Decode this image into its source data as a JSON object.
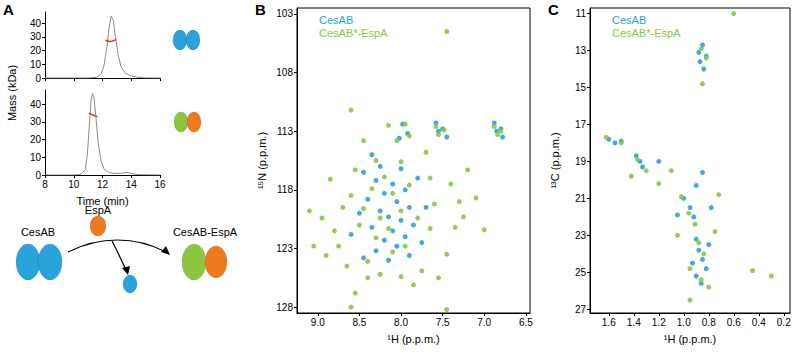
{
  "chart_data": [
    {
      "type": "line",
      "title": "A",
      "ylabel": "Mass (kDa)",
      "tick_labels": "y",
      "grid": false,
      "xlim": [
        8,
        16
      ],
      "xticks": [
        8,
        10,
        12,
        14,
        16
      ],
      "ylim": [
        0,
        48
      ],
      "yticks": [
        0,
        10,
        20,
        30,
        40
      ],
      "series": [
        {
          "color": "#8a8a8a",
          "line_style": "solid",
          "x": [
            8,
            9,
            10,
            11,
            11.6,
            11.9,
            12.1,
            12.3,
            12.45,
            12.6,
            12.75,
            12.9,
            13.1,
            13.3,
            13.6,
            14,
            14.5,
            15,
            16
          ],
          "values": [
            0,
            0,
            0,
            0,
            0.5,
            3,
            9,
            22,
            36,
            45,
            42,
            30,
            16,
            8,
            3.5,
            1.5,
            0.5,
            0,
            0
          ]
        },
        {
          "color": "#e8372c",
          "line_style": "solid",
          "x": [
            12.2,
            12.35,
            12.5,
            12.65,
            12.8,
            12.95
          ],
          "values": [
            27.5,
            27,
            26.5,
            26.7,
            27.3,
            28
          ]
        }
      ]
    },
    {
      "type": "line",
      "xlabel": "Time (min)",
      "grid": false,
      "xlim": [
        8,
        16
      ],
      "xticks": [
        8,
        10,
        12,
        14,
        16
      ],
      "ylim": [
        0,
        48
      ],
      "yticks": [
        0,
        10,
        20,
        30,
        40
      ],
      "series": [
        {
          "color": "#8a8a8a",
          "line_style": "solid",
          "x": [
            8,
            9,
            10,
            10.5,
            10.8,
            10.95,
            11.1,
            11.2,
            11.3,
            11.4,
            11.55,
            11.7,
            11.9,
            12.1,
            12.4,
            12.8,
            13.3,
            13.7,
            14,
            14.5,
            16
          ],
          "values": [
            0,
            0,
            0,
            0.3,
            3,
            12,
            30,
            42,
            46,
            44,
            32,
            18,
            8,
            3.5,
            1.5,
            0.8,
            1,
            1.5,
            0.8,
            0.2,
            0
          ]
        },
        {
          "color": "#e8372c",
          "line_style": "solid",
          "x": [
            11.05,
            11.15,
            11.25,
            11.35,
            11.45,
            11.55,
            11.65
          ],
          "values": [
            35,
            34.5,
            34,
            33.8,
            33.5,
            33.2,
            33
          ]
        }
      ]
    },
    {
      "type": "scatter",
      "title": "B",
      "xlabel": "¹H (p.p.m.)",
      "ylabel": "¹⁵N (p.p.m.)",
      "legend": "upper left",
      "grid": false,
      "xlim": [
        9.25,
        6.45
      ],
      "xticks": [
        {
          "value": 9,
          "label": "9.0"
        },
        8.5,
        {
          "value": 8,
          "label": "8.0"
        },
        7.5,
        {
          "value": 7,
          "label": "7.0"
        },
        6.5
      ],
      "ylim": [
        128.5,
        102.5
      ],
      "yticks": [
        103,
        108,
        113,
        118,
        123,
        128
      ],
      "series": [
        {
          "name": "CesAB",
          "color": "#29a3dc",
          "marker": "circle",
          "x": [
            7.58,
            6.88,
            7.55,
            6.85,
            7.5,
            6.8,
            7.45,
            6.78,
            7.98,
            7.92,
            8.02,
            8.45,
            8.3,
            8.1,
            7.95,
            8.2,
            8.4,
            8.05,
            7.9,
            8.25,
            8.15,
            8.0,
            7.85,
            8.35,
            8.1,
            7.95,
            8.2,
            8.05,
            8.3,
            7.8,
            8.5,
            8.6,
            8.0,
            8.35,
            7.7,
            7.75,
            8.15,
            8.45,
            7.9,
            8.25
          ],
          "values": [
            112.3,
            112.3,
            113.0,
            113.0,
            112.8,
            112.8,
            113.5,
            113.5,
            112.4,
            113.2,
            113.6,
            116.5,
            117.2,
            117.5,
            118,
            118.3,
            118.8,
            119.0,
            119.5,
            119.8,
            120.3,
            120.6,
            121,
            121.2,
            121.5,
            122,
            122.3,
            122.8,
            123.2,
            117,
            120,
            121.8,
            116.2,
            115.0,
            119.5,
            122.5,
            124,
            123.8,
            123.6,
            116
          ]
        },
        {
          "name": "CesAB*-EspA",
          "color": "#8cc63f",
          "marker": "circle",
          "x": [
            7.45,
            8.6,
            8.15,
            7.95,
            7.9,
            8.05,
            7.58,
            7.55,
            6.88,
            6.84,
            7.48,
            6.8,
            8.3,
            7.7,
            8.55,
            8.85,
            9.1,
            8.95,
            8.7,
            8.6,
            8.45,
            8.8,
            9.05,
            8.9,
            8.65,
            8.4,
            8.55,
            8.25,
            8.0,
            7.75,
            7.55,
            7.45,
            7.35,
            7.25,
            7.0,
            7.1,
            7.2,
            7.4,
            7.6,
            7.65,
            7.8,
            7.9,
            8.1,
            8.2,
            8.35,
            8.5,
            8.3,
            8.15,
            8.0,
            8.25,
            8.1,
            7.95,
            8.4,
            7.85,
            8.6,
            7.45,
            7.65,
            7.3,
            8.75,
            8.0,
            8.45
          ],
          "values": [
            104.5,
            111.2,
            112.5,
            112.4,
            113.4,
            113.8,
            112.6,
            113.3,
            112.6,
            113.3,
            112.9,
            113.0,
            115.5,
            114.8,
            116.3,
            117.1,
            119.8,
            120.4,
            119.5,
            118.5,
            119.6,
            121.5,
            122.8,
            123.6,
            124.5,
            125.5,
            126.8,
            125.2,
            125.4,
            124.9,
            125.5,
            123.5,
            121.2,
            120.3,
            121.4,
            118.7,
            116.3,
            117.5,
            119.2,
            121.3,
            120.4,
            117.6,
            118.3,
            116.9,
            117.9,
            121,
            122.1,
            121.3,
            119.8,
            120.4,
            123.3,
            122.8,
            124.1,
            126.1,
            128.0,
            128.2,
            117.0,
            119.0,
            122.8,
            115.6,
            113.8
          ]
        }
      ]
    },
    {
      "type": "scatter",
      "title": "C",
      "xlabel": "¹H (p.p.m.)",
      "ylabel": "¹³C (p.p.m.)",
      "legend": "upper left",
      "grid": false,
      "xlim": [
        1.75,
        0.15
      ],
      "xticks": [
        1.6,
        1.4,
        1.2,
        {
          "value": 1,
          "label": "1.0"
        },
        0.8,
        0.6,
        0.4,
        0.2
      ],
      "ylim": [
        27.2,
        10.7
      ],
      "yticks": [
        11,
        13,
        15,
        17,
        19,
        21,
        23,
        25,
        27
      ],
      "series": [
        {
          "name": "CesAB",
          "color": "#29a3dc",
          "marker": "circle",
          "x": [
            0.85,
            0.88,
            0.82,
            0.87,
            0.84,
            1.6,
            1.55,
            1.5,
            1.38,
            1.35,
            1.33,
            1.2,
            1.0,
            0.95,
            1.05,
            0.9,
            0.92,
            0.9,
            0.88,
            0.85,
            0.82,
            0.9,
            0.86,
            0.8,
            0.93,
            0.78,
            0.85
          ],
          "values": [
            12.7,
            13.1,
            13.3,
            13.6,
            14.0,
            17.8,
            18.0,
            17.9,
            18.7,
            19.0,
            19.3,
            19.0,
            21.0,
            21.5,
            21.9,
            20.3,
            22.0,
            23.2,
            23.8,
            24.3,
            24.8,
            25.2,
            25.6,
            23.5,
            24.5,
            21.5,
            19.6
          ]
        },
        {
          "name": "CesAB*-EspA",
          "color": "#8cc63f",
          "marker": "circle",
          "x": [
            0.6,
            0.86,
            0.82,
            0.85,
            1.62,
            1.5,
            1.37,
            1.3,
            1.42,
            1.2,
            1.1,
            1.02,
            0.96,
            0.91,
            0.88,
            0.84,
            0.95,
            0.86,
            0.8,
            0.95,
            0.3,
            0.45,
            0.75,
            0.72,
            1.05
          ],
          "values": [
            11.0,
            12.9,
            13.4,
            14.8,
            17.7,
            18.0,
            18.9,
            19.5,
            19.8,
            20.2,
            19.5,
            20.9,
            21.8,
            22.4,
            23.4,
            24.0,
            24.8,
            25.4,
            25.8,
            26.5,
            25.2,
            24.9,
            22.8,
            20.8,
            23.0
          ]
        }
      ]
    }
  ],
  "diagram": {
    "nodes": [
      {
        "label": "CesAB"
      },
      {
        "label": "EspA"
      },
      {
        "label": "CesAB-EspA"
      }
    ]
  }
}
